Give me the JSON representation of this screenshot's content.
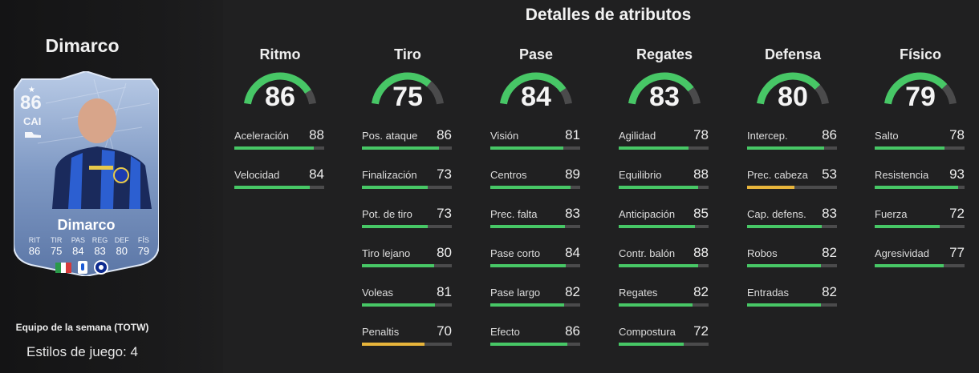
{
  "player": {
    "name": "Dimarco",
    "card": {
      "rating": "86",
      "position": "CAI",
      "name": "Dimarco",
      "stats": [
        {
          "abbr": "RIT",
          "value": "86"
        },
        {
          "abbr": "TIR",
          "value": "75"
        },
        {
          "abbr": "PAS",
          "value": "84"
        },
        {
          "abbr": "REG",
          "value": "83"
        },
        {
          "abbr": "DEF",
          "value": "80"
        },
        {
          "abbr": "FÍS",
          "value": "79"
        }
      ]
    },
    "card_type": "Equipo de la semana (TOTW)",
    "playstyles": "Estilos de juego: 4"
  },
  "details": {
    "title": "Detalles de atributos",
    "categories": [
      {
        "name": "Ritmo",
        "value": 86,
        "attributes": [
          {
            "label": "Aceleración",
            "value": 88
          },
          {
            "label": "Velocidad",
            "value": 84
          }
        ]
      },
      {
        "name": "Tiro",
        "value": 75,
        "attributes": [
          {
            "label": "Pos. ataque",
            "value": 86
          },
          {
            "label": "Finalización",
            "value": 73
          },
          {
            "label": "Pot. de tiro",
            "value": 73
          },
          {
            "label": "Tiro lejano",
            "value": 80
          },
          {
            "label": "Voleas",
            "value": 81
          },
          {
            "label": "Penaltis",
            "value": 70
          }
        ]
      },
      {
        "name": "Pase",
        "value": 84,
        "attributes": [
          {
            "label": "Visión",
            "value": 81
          },
          {
            "label": "Centros",
            "value": 89
          },
          {
            "label": "Prec. falta",
            "value": 83
          },
          {
            "label": "Pase corto",
            "value": 84
          },
          {
            "label": "Pase largo",
            "value": 82
          },
          {
            "label": "Efecto",
            "value": 86
          }
        ]
      },
      {
        "name": "Regates",
        "value": 83,
        "attributes": [
          {
            "label": "Agilidad",
            "value": 78
          },
          {
            "label": "Equilibrio",
            "value": 88
          },
          {
            "label": "Anticipación",
            "value": 85
          },
          {
            "label": "Contr. balón",
            "value": 88
          },
          {
            "label": "Regates",
            "value": 82
          },
          {
            "label": "Compostura",
            "value": 72
          }
        ]
      },
      {
        "name": "Defensa",
        "value": 80,
        "attributes": [
          {
            "label": "Intercep.",
            "value": 86
          },
          {
            "label": "Prec. cabeza",
            "value": 53
          },
          {
            "label": "Cap. defens.",
            "value": 83
          },
          {
            "label": "Robos",
            "value": 82
          },
          {
            "label": "Entradas",
            "value": 82
          }
        ]
      },
      {
        "name": "Físico",
        "value": 79,
        "attributes": [
          {
            "label": "Salto",
            "value": 78
          },
          {
            "label": "Resistencia",
            "value": 93
          },
          {
            "label": "Fuerza",
            "value": 72
          },
          {
            "label": "Agresividad",
            "value": 77
          }
        ]
      }
    ]
  },
  "colors": {
    "high": "#47c766",
    "mid": "#e7b43b",
    "track": "#4b4b4c",
    "background": "#202021"
  }
}
